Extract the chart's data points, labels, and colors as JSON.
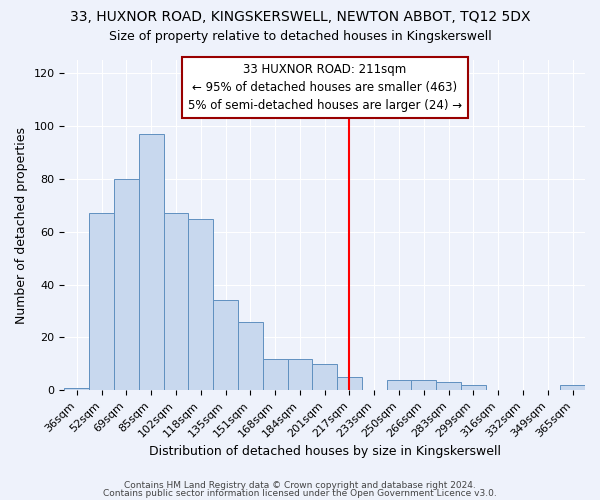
{
  "title1": "33, HUXNOR ROAD, KINGSKERSWELL, NEWTON ABBOT, TQ12 5DX",
  "title2": "Size of property relative to detached houses in Kingskerswell",
  "xlabel": "Distribution of detached houses by size in Kingskerswell",
  "ylabel": "Number of detached properties",
  "footnote1": "Contains HM Land Registry data © Crown copyright and database right 2024.",
  "footnote2": "Contains public sector information licensed under the Open Government Licence v3.0.",
  "categories": [
    "36sqm",
    "52sqm",
    "69sqm",
    "85sqm",
    "102sqm",
    "118sqm",
    "135sqm",
    "151sqm",
    "168sqm",
    "184sqm",
    "201sqm",
    "217sqm",
    "233sqm",
    "250sqm",
    "266sqm",
    "283sqm",
    "299sqm",
    "316sqm",
    "332sqm",
    "349sqm",
    "365sqm"
  ],
  "values": [
    1,
    67,
    80,
    97,
    67,
    65,
    34,
    26,
    12,
    12,
    10,
    5,
    0,
    4,
    4,
    3,
    2,
    0,
    0,
    0,
    2
  ],
  "bar_color": "#c8d8ee",
  "bar_edge_color": "#6090c0",
  "annotation_line1": "33 HUXNOR ROAD: 211sqm",
  "annotation_line2": "← 95% of detached houses are smaller (463)",
  "annotation_line3": "5% of semi-detached houses are larger (24) →",
  "vline_x_index": 11,
  "ylim": [
    0,
    125
  ],
  "background_color": "#eef2fb",
  "grid_color": "#ffffff",
  "title1_fontsize": 10,
  "title2_fontsize": 9,
  "xlabel_fontsize": 9,
  "ylabel_fontsize": 9,
  "tick_fontsize": 8,
  "annotation_fontsize": 8.5
}
